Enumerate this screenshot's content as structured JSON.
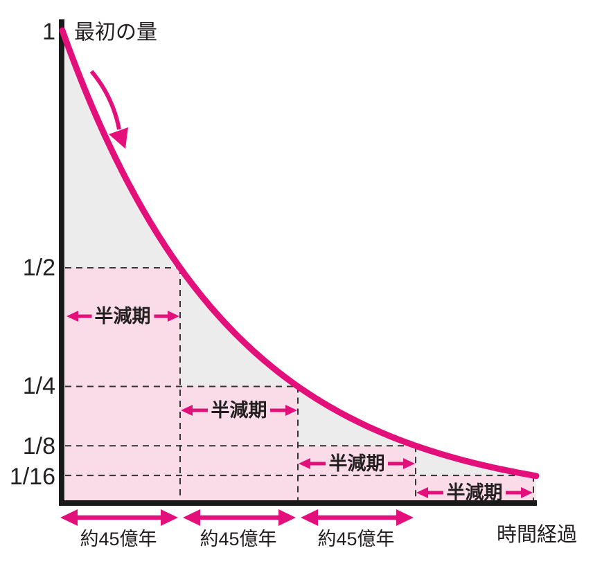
{
  "chart_data": {
    "type": "line",
    "curve_shape": "exponential-decay",
    "xlabel": "時間経過",
    "y_axis_top_annotation": "最初の量",
    "y_ticks": [
      {
        "label": "1",
        "value": 1
      },
      {
        "label": "1/2",
        "value": 0.5
      },
      {
        "label": "1/4",
        "value": 0.25
      },
      {
        "label": "1/8",
        "value": 0.125
      },
      {
        "label": "1/16",
        "value": 0.0625
      }
    ],
    "points": [
      {
        "t_half_lives": 0,
        "value": 1
      },
      {
        "t_half_lives": 1,
        "value": 0.5
      },
      {
        "t_half_lives": 2,
        "value": 0.25
      },
      {
        "t_half_lives": 3,
        "value": 0.125
      },
      {
        "t_half_lives": 4,
        "value": 0.0625
      }
    ],
    "half_life_annotations": [
      {
        "label": "半減期",
        "from_half_life": 0,
        "to_half_life": 1
      },
      {
        "label": "半減期",
        "from_half_life": 1,
        "to_half_life": 2
      },
      {
        "label": "半減期",
        "from_half_life": 2,
        "to_half_life": 3
      },
      {
        "label": "半減期",
        "from_half_life": 3,
        "to_half_life": 4
      }
    ],
    "x_interval_labels": [
      {
        "label": "約45億年",
        "from_half_life": 0,
        "to_half_life": 1
      },
      {
        "label": "約45億年",
        "from_half_life": 1,
        "to_half_life": 2
      },
      {
        "label": "約45億年",
        "from_half_life": 2,
        "to_half_life": 3
      }
    ],
    "ylim": [
      0,
      1
    ],
    "grid": "dashed guides at each half-life step",
    "legend": "none",
    "colors": {
      "curve": "#e3107b",
      "area_pink": "#fadce9",
      "area_gray": "#ececec",
      "axis": "#1a1a1a",
      "text": "#231f20",
      "dash": "#333333"
    }
  }
}
